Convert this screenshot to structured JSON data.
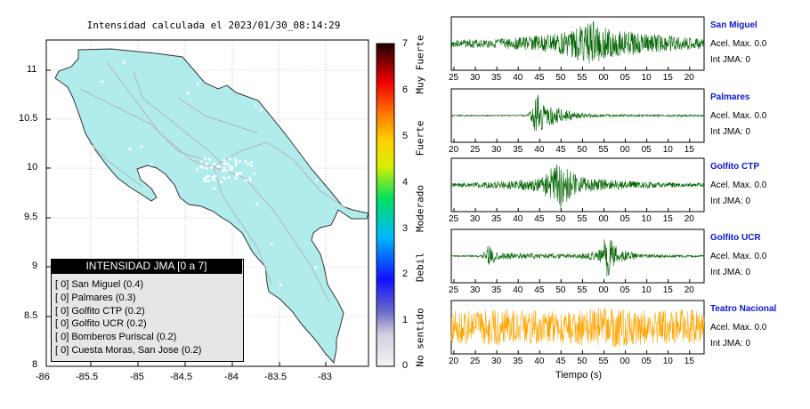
{
  "map": {
    "title": "Intensidad calculada el 2023/01/30_08:14:29",
    "x_ticks": [
      "-86",
      "-85.5",
      "-85",
      "-84.5",
      "-84",
      "-83.5",
      "-83"
    ],
    "y_ticks": [
      "11",
      "10.5",
      "10",
      "9.5",
      "9",
      "8.5",
      "8"
    ],
    "land_color": "#b0ecec",
    "road_color": "#b5b5b5"
  },
  "legend": {
    "header": "INTENSIDAD JMA [0 a 7]",
    "rows": [
      "[ 0]  San Miguel (0.4)",
      "[ 0]  Palmares (0.3)",
      "[ 0]  Golfito CTP (0.2)",
      "[ 0]  Golfito UCR (0.2)",
      "[ 0]  Bomberos Puriscal (0.2)",
      "[ 0]  Cuesta Moras, San Jose (0.2)"
    ]
  },
  "colorbar": {
    "ticks": [
      "7",
      "6",
      "5",
      "4",
      "3",
      "2",
      "1",
      "0"
    ],
    "labels": [
      "Muy Fuerte",
      "Fuerte",
      "Moderado",
      "Debil",
      "No sentido"
    ],
    "colors": [
      "#e8e8e8",
      "#8080c0",
      "#0000ff",
      "#00c8ff",
      "#00ff40",
      "#ffff00",
      "#ff8000",
      "#ff0000",
      "#200000"
    ]
  },
  "chart_data": [
    {
      "type": "line",
      "name": "San Miguel",
      "x_ticks": [
        "25",
        "30",
        "35",
        "40",
        "45",
        "50",
        "55",
        "00",
        "05",
        "10",
        "15",
        "20"
      ],
      "color": "#006400",
      "info": [
        "Acel. Max. 0.0",
        "Int JMA: 0"
      ],
      "envelope": [
        [
          0,
          0.15
        ],
        [
          0.2,
          0.2
        ],
        [
          0.35,
          0.35
        ],
        [
          0.45,
          0.5
        ],
        [
          0.52,
          0.8
        ],
        [
          0.56,
          0.95
        ],
        [
          0.62,
          0.6
        ],
        [
          0.75,
          0.45
        ],
        [
          0.9,
          0.3
        ],
        [
          1,
          0.2
        ]
      ]
    },
    {
      "type": "line",
      "name": "Palmares",
      "x_ticks": [
        "20",
        "25",
        "30",
        "35",
        "40",
        "45",
        "50",
        "55",
        "00",
        "05",
        "10",
        "15"
      ],
      "color": "#006400",
      "info": [
        "Acel. Max. 0.0",
        "Int JMA: 0"
      ],
      "envelope": [
        [
          0,
          0.03
        ],
        [
          0.3,
          0.03
        ],
        [
          0.32,
          0.3
        ],
        [
          0.34,
          1
        ],
        [
          0.37,
          0.4
        ],
        [
          0.42,
          0.35
        ],
        [
          0.5,
          0.12
        ],
        [
          0.6,
          0.05
        ],
        [
          1,
          0.04
        ]
      ]
    },
    {
      "type": "line",
      "name": "Golfito CTP",
      "x_ticks": [
        "25",
        "30",
        "35",
        "40",
        "45",
        "50",
        "55",
        "00",
        "05",
        "10",
        "15",
        "20"
      ],
      "color": "#006400",
      "info": [
        "Acel. Max. 0.0",
        "Int JMA: 0"
      ],
      "envelope": [
        [
          0,
          0.08
        ],
        [
          0.2,
          0.15
        ],
        [
          0.35,
          0.3
        ],
        [
          0.43,
          1
        ],
        [
          0.5,
          0.35
        ],
        [
          0.65,
          0.2
        ],
        [
          0.8,
          0.12
        ],
        [
          1,
          0.08
        ]
      ]
    },
    {
      "type": "line",
      "name": "Golfito UCR",
      "x_ticks": [
        "25",
        "30",
        "35",
        "40",
        "45",
        "50",
        "55",
        "00",
        "05",
        "10",
        "15",
        "20"
      ],
      "color": "#006400",
      "info": [
        "Acel. Max. 0.0",
        "Int JMA: 0"
      ],
      "envelope": [
        [
          0,
          0.03
        ],
        [
          0.12,
          0.05
        ],
        [
          0.15,
          0.5
        ],
        [
          0.18,
          0.15
        ],
        [
          0.5,
          0.08
        ],
        [
          0.6,
          0.3
        ],
        [
          0.61,
          1
        ],
        [
          0.66,
          0.3
        ],
        [
          0.75,
          0.08
        ],
        [
          1,
          0.04
        ]
      ]
    },
    {
      "type": "line",
      "name": "Teatro Nacional",
      "x_ticks": [
        "20",
        "25",
        "30",
        "35",
        "40",
        "45",
        "50",
        "55",
        "00",
        "05",
        "10",
        "15"
      ],
      "xlabel": "Tiempo (s)",
      "color": "#ffa500",
      "info": [
        "Acel. Max. 0.0",
        "Int JMA: 0"
      ],
      "envelope": [
        [
          0,
          0.7
        ],
        [
          0.2,
          0.75
        ],
        [
          0.4,
          0.7
        ],
        [
          0.6,
          0.85
        ],
        [
          0.8,
          0.7
        ],
        [
          1,
          0.75
        ]
      ]
    }
  ]
}
